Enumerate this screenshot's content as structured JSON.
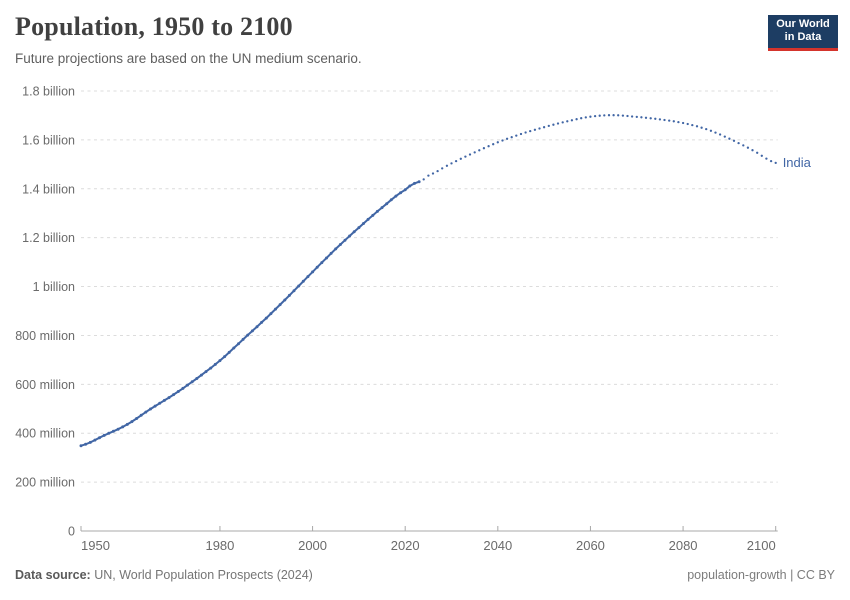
{
  "header": {
    "title": "Population, 1950 to 2100",
    "subtitle": "Future projections are based on the UN medium scenario.",
    "logo": {
      "line1": "Our World",
      "line2": "in Data"
    }
  },
  "chart_data": {
    "type": "line",
    "title": "Population, 1950 to 2100",
    "entity": "India",
    "unit": "people (millions)",
    "xlim": [
      1950,
      2100
    ],
    "ylim_millions": [
      0,
      1800
    ],
    "grid": true,
    "legend_position": "end-of-line",
    "x_ticks": [
      1950,
      1980,
      2000,
      2020,
      2040,
      2060,
      2080,
      2100
    ],
    "y_ticks": [
      {
        "v": 1800,
        "label": "1.8 billion"
      },
      {
        "v": 1600,
        "label": "1.6 billion"
      },
      {
        "v": 1400,
        "label": "1.4 billion"
      },
      {
        "v": 1200,
        "label": "1.2 billion"
      },
      {
        "v": 1000,
        "label": "1 billion"
      },
      {
        "v": 800,
        "label": "800 million"
      },
      {
        "v": 600,
        "label": "600 million"
      },
      {
        "v": 400,
        "label": "400 million"
      },
      {
        "v": 200,
        "label": "200 million"
      },
      {
        "v": 0,
        "label": "0"
      }
    ],
    "series": [
      {
        "name": "India (observed)",
        "style": "solid",
        "points": [
          [
            1950,
            349
          ],
          [
            1955,
            391
          ],
          [
            1960,
            436
          ],
          [
            1965,
            499
          ],
          [
            1970,
            558
          ],
          [
            1975,
            624
          ],
          [
            1980,
            697
          ],
          [
            1985,
            784
          ],
          [
            1990,
            871
          ],
          [
            1995,
            964
          ],
          [
            2000,
            1060
          ],
          [
            2005,
            1154
          ],
          [
            2010,
            1241
          ],
          [
            2015,
            1323
          ],
          [
            2020,
            1396
          ],
          [
            2023,
            1429
          ]
        ]
      },
      {
        "name": "India (UN medium projection)",
        "style": "dotted",
        "points": [
          [
            2023,
            1429
          ],
          [
            2025,
            1454
          ],
          [
            2030,
            1504
          ],
          [
            2035,
            1549
          ],
          [
            2040,
            1590
          ],
          [
            2045,
            1624
          ],
          [
            2050,
            1652
          ],
          [
            2055,
            1676
          ],
          [
            2060,
            1695
          ],
          [
            2065,
            1701
          ],
          [
            2070,
            1694
          ],
          [
            2075,
            1684
          ],
          [
            2080,
            1669
          ],
          [
            2085,
            1644
          ],
          [
            2090,
            1605
          ],
          [
            2095,
            1558
          ],
          [
            2100,
            1506
          ]
        ]
      }
    ],
    "line_color": "#4166a5"
  },
  "entity_label": {
    "text": "India",
    "color": "#4166a5"
  },
  "footer": {
    "source_label": "Data source:",
    "source_text": " UN, World Population Prospects (2024)",
    "slug": "population-growth",
    "separator": " | ",
    "license": "CC BY"
  },
  "colors": {
    "line": "#4166a5",
    "grid": "#dcdcdc",
    "axis": "#a8a8a8",
    "tick_label": "#6b6b6b",
    "logo_bg": "#1d3d63",
    "logo_red": "#d4342c"
  }
}
